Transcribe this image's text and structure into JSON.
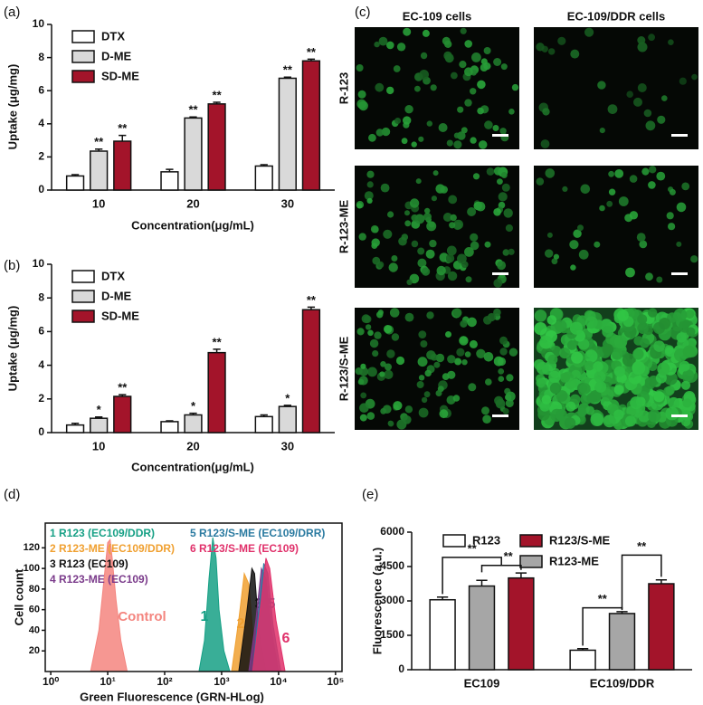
{
  "chart_data": [
    {
      "type": "bar",
      "panel_label": "(a)",
      "y_label": "Uptake  (μg/mg)",
      "x_label": "Concentration(μg/mL)",
      "categories": [
        "10",
        "20",
        "30"
      ],
      "ylim": [
        0,
        10
      ],
      "yticks": [
        0,
        2,
        4,
        6,
        8,
        10
      ],
      "series": [
        {
          "name": "DTX",
          "color": "#ffffff",
          "values": [
            0.85,
            1.1,
            1.45
          ],
          "errors": [
            0.08,
            0.15,
            0.08
          ]
        },
        {
          "name": "D-ME",
          "color": "#d9d9d9",
          "values": [
            2.35,
            4.35,
            6.75
          ],
          "errors": [
            0.12,
            0.06,
            0.07
          ],
          "annotations": [
            "**",
            "**",
            "**"
          ]
        },
        {
          "name": "SD-ME",
          "color": "#a3142a",
          "values": [
            2.95,
            5.2,
            7.8
          ],
          "errors": [
            0.35,
            0.1,
            0.1
          ],
          "annotations": [
            "**",
            "**",
            "**"
          ]
        }
      ]
    },
    {
      "type": "bar",
      "panel_label": "(b)",
      "y_label": "Uptake  (μg/mg)",
      "x_label": "Concentration(μg/mL)",
      "categories": [
        "10",
        "20",
        "30"
      ],
      "ylim": [
        0,
        10
      ],
      "yticks": [
        0,
        2,
        4,
        6,
        8,
        10
      ],
      "series": [
        {
          "name": "DTX",
          "color": "#ffffff",
          "values": [
            0.45,
            0.65,
            0.95
          ],
          "errors": [
            0.1,
            0.05,
            0.1
          ]
        },
        {
          "name": "D-ME",
          "color": "#d9d9d9",
          "values": [
            0.85,
            1.05,
            1.55
          ],
          "errors": [
            0.08,
            0.1,
            0.07
          ],
          "annotations": [
            "*",
            "*",
            "*"
          ]
        },
        {
          "name": "SD-ME",
          "color": "#a3142a",
          "values": [
            2.15,
            4.75,
            7.3
          ],
          "errors": [
            0.1,
            0.2,
            0.15
          ],
          "annotations": [
            "**",
            "**",
            "**"
          ]
        }
      ]
    },
    {
      "type": "area",
      "panel_label": "(d)",
      "y_label": "Cell count",
      "x_label": "Green Fluorescence (GRN-HLog)",
      "log_x": true,
      "xlim": [
        0.8,
        130000
      ],
      "xticks": [
        {
          "value": 1,
          "label": "10⁰"
        },
        {
          "value": 10,
          "label": "10¹"
        },
        {
          "value": 100,
          "label": "10²"
        },
        {
          "value": 1000,
          "label": "10³"
        },
        {
          "value": 10000,
          "label": "10⁴"
        },
        {
          "value": 100000,
          "label": "10⁵"
        }
      ],
      "ylim": [
        0,
        144
      ],
      "yticks": [
        20,
        40,
        60,
        80,
        100,
        120
      ],
      "series": [
        {
          "peak_label": "Control",
          "color": "#f4857f",
          "x": [
            5,
            7,
            9,
            10,
            11,
            12,
            14,
            17,
            22
          ],
          "values": [
            0,
            40,
            100,
            125,
            128,
            110,
            70,
            30,
            0
          ]
        },
        {
          "name": "1 R123 (EC109/DDR)",
          "peak_label": "1",
          "color": "#16a085",
          "x": [
            400,
            500,
            600,
            700,
            800,
            900,
            1100,
            1400
          ],
          "values": [
            0,
            30,
            90,
            130,
            110,
            60,
            20,
            0
          ]
        },
        {
          "name": "2 R123-ME (EC109/DDR)",
          "peak_label": "2",
          "color": "#f0a030",
          "x": [
            1500,
            2000,
            2500,
            3000,
            3500,
            4500
          ],
          "values": [
            0,
            50,
            95,
            85,
            40,
            0
          ]
        },
        {
          "name": "3 R123 (EC109)",
          "peak_label": "3",
          "color": "#111111",
          "x": [
            2000,
            2800,
            3400,
            3800,
            4500,
            6000
          ],
          "values": [
            0,
            60,
            100,
            95,
            40,
            0
          ]
        },
        {
          "name": "4 R123-ME (EC109)",
          "peak_label": "4",
          "color": "#7a3a8a",
          "x": [
            3000,
            4000,
            5000,
            6000,
            7500,
            10000
          ],
          "values": [
            0,
            50,
            100,
            90,
            40,
            0
          ]
        },
        {
          "name": "5 R123/S-ME (EC109/DRR)",
          "peak_label": "5",
          "color": "#2a7aa0",
          "x": [
            3500,
            4500,
            5500,
            6500,
            8000,
            11000
          ],
          "values": [
            0,
            60,
            105,
            95,
            45,
            0
          ]
        },
        {
          "name": "6 R123/S-ME (EC109)",
          "peak_label": "6",
          "color": "#e0306a",
          "x": [
            3500,
            5000,
            6000,
            7000,
            9000,
            13000
          ],
          "values": [
            0,
            70,
            110,
            100,
            50,
            0
          ]
        }
      ]
    },
    {
      "type": "bar",
      "panel_label": "(e)",
      "y_label": "Fluorescence (a.u.)",
      "categories": [
        "EC109",
        "EC109/DDR"
      ],
      "ylim": [
        0,
        6000
      ],
      "yticks": [
        0,
        1500,
        3000,
        4500,
        6000
      ],
      "series": [
        {
          "name": "R123",
          "color": "#ffffff",
          "values": [
            3050,
            850
          ],
          "errors": [
            120,
            70
          ]
        },
        {
          "name": "R123-ME",
          "color": "#a6a6a6",
          "values": [
            3650,
            2450
          ],
          "errors": [
            250,
            80
          ]
        },
        {
          "name": "R123/S-ME",
          "color": "#a3142a",
          "values": [
            4000,
            3750
          ],
          "errors": [
            220,
            170
          ]
        }
      ],
      "annotations": [
        "**",
        "**",
        "**",
        "**"
      ]
    }
  ],
  "micrographs": {
    "panel_label": "(c)",
    "column_headers": [
      "EC-109 cells",
      "EC-109/DDR cells"
    ],
    "row_labels": [
      "R-123",
      "R-123-ME",
      "R-123/S-ME"
    ]
  }
}
